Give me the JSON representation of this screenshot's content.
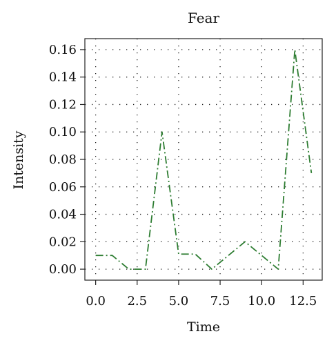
{
  "chart_data": {
    "type": "line",
    "title": "Fear",
    "xlabel": "Time",
    "ylabel": "Intensity",
    "xlim": [
      -0.65,
      13.65
    ],
    "ylim": [
      -0.008,
      0.168
    ],
    "xticks": [
      0,
      2.5,
      5,
      7.5,
      10,
      12.5
    ],
    "xtick_labels": [
      "0.0",
      "2.5",
      "5.0",
      "7.5",
      "10.0",
      "12.5"
    ],
    "yticks": [
      0,
      0.02,
      0.04,
      0.06,
      0.08,
      0.1,
      0.12,
      0.14,
      0.16
    ],
    "ytick_labels": [
      "0.00",
      "0.02",
      "0.04",
      "0.06",
      "0.08",
      "0.10",
      "0.12",
      "0.14",
      "0.16"
    ],
    "grid": true,
    "grid_style": "dotted",
    "series": [
      {
        "color": "#2e7d32",
        "line_style": "dash-dot",
        "x": [
          0,
          1,
          2,
          3,
          4,
          5,
          6,
          7,
          8,
          9,
          10,
          11,
          12,
          13
        ],
        "y": [
          0.01,
          0.01,
          0.0,
          0.0,
          0.1,
          0.011,
          0.011,
          0.0,
          0.01,
          0.02,
          0.01,
          0.0,
          0.16,
          0.07
        ]
      }
    ]
  }
}
